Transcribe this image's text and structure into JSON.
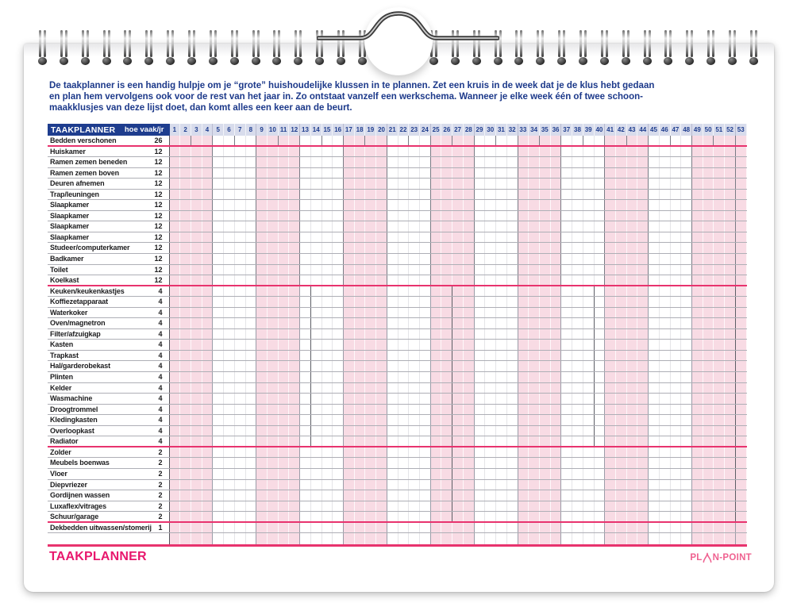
{
  "intro": {
    "lines": [
      "De taakplanner is een handig hulpje om je “grote” huishoudelijke klussen in te plannen. Zet een kruis in de week dat je de klus hebt gedaan",
      "en plan hem vervolgens ook voor de rest van het jaar in. Zo ontstaat vanzelf een werkschema. Wanneer je elke week één of twee schoon-",
      "maakklusjes van deze lijst doet, dan komt alles een keer aan de beurt."
    ]
  },
  "table": {
    "title": "TAAKPLANNER",
    "freq_header": "hoe vaak/jr",
    "weeks": [
      1,
      2,
      3,
      4,
      5,
      6,
      7,
      8,
      9,
      10,
      11,
      12,
      13,
      14,
      15,
      16,
      17,
      18,
      19,
      20,
      21,
      22,
      23,
      24,
      25,
      26,
      27,
      28,
      29,
      30,
      31,
      32,
      33,
      34,
      35,
      36,
      37,
      38,
      39,
      40,
      41,
      42,
      43,
      44,
      45,
      46,
      47,
      48,
      49,
      50,
      51,
      52,
      53
    ],
    "empty_trailing_rows": 1,
    "sections": [
      {
        "divider_every": 2,
        "rows": [
          {
            "task": "Bedden verschonen",
            "freq": 26
          }
        ]
      },
      {
        "divider_every": 4,
        "rows": [
          {
            "task": "Huiskamer",
            "freq": 12
          },
          {
            "task": "Ramen zemen beneden",
            "freq": 12
          },
          {
            "task": "Ramen zemen boven",
            "freq": 12
          },
          {
            "task": "Deuren afnemen",
            "freq": 12
          },
          {
            "task": "Trap/leuningen",
            "freq": 12
          },
          {
            "task": "Slaapkamer",
            "freq": 12
          },
          {
            "task": "Slaapkamer",
            "freq": 12
          },
          {
            "task": "Slaapkamer",
            "freq": 12
          },
          {
            "task": "Slaapkamer",
            "freq": 12
          },
          {
            "task": "Studeer/computerkamer",
            "freq": 12
          },
          {
            "task": "Badkamer",
            "freq": 12
          },
          {
            "task": "Toilet",
            "freq": 12
          },
          {
            "task": "Koelkast",
            "freq": 12
          }
        ]
      },
      {
        "divider_every": 13,
        "rows": [
          {
            "task": "Keuken/keukenkastjes",
            "freq": 4
          },
          {
            "task": "Koffiezetapparaat",
            "freq": 4
          },
          {
            "task": "Waterkoker",
            "freq": 4
          },
          {
            "task": "Oven/magnetron",
            "freq": 4
          },
          {
            "task": "Filter/afzuigkap",
            "freq": 4
          },
          {
            "task": "Kasten",
            "freq": 4
          },
          {
            "task": "Trapkast",
            "freq": 4
          },
          {
            "task": "Hal/garderobekast",
            "freq": 4
          },
          {
            "task": "Plinten",
            "freq": 4
          },
          {
            "task": "Kelder",
            "freq": 4
          },
          {
            "task": "Wasmachine",
            "freq": 4
          },
          {
            "task": "Droogtrommel",
            "freq": 4
          },
          {
            "task": "Kledingkasten",
            "freq": 4
          },
          {
            "task": "Overloopkast",
            "freq": 4
          },
          {
            "task": "Radiator",
            "freq": 4
          }
        ]
      },
      {
        "divider_every": 26,
        "rows": [
          {
            "task": "Zolder",
            "freq": 2
          },
          {
            "task": "Meubels boenwas",
            "freq": 2
          },
          {
            "task": "Vloer",
            "freq": 2
          },
          {
            "task": "Diepvriezer",
            "freq": 2
          },
          {
            "task": "Gordijnen wassen",
            "freq": 2
          },
          {
            "task": "Luxaflex/vitrages",
            "freq": 2
          },
          {
            "task": "Schuur/garage",
            "freq": 2
          }
        ]
      },
      {
        "divider_every": 0,
        "rows": [
          {
            "task": "Dekbedden uitwassen/stomerij",
            "freq": 1
          }
        ]
      }
    ]
  },
  "footer": {
    "title": "TAAKPLANNER",
    "logo": {
      "left": "PL",
      "right": "N-POINT"
    }
  },
  "colors": {
    "header_navy": "#1e3d8e",
    "week_header_bg": "#d8dcec",
    "stripe_pink": "#f8dbe4",
    "separator_pink": "#e8336e",
    "footer_pink": "#e8176d",
    "logo_pink": "#ef6190",
    "grid_line": "#aeafb6",
    "group_line": "#9b9ca8",
    "divider_line": "#5d5e66",
    "intro_text": "#1c398a"
  }
}
